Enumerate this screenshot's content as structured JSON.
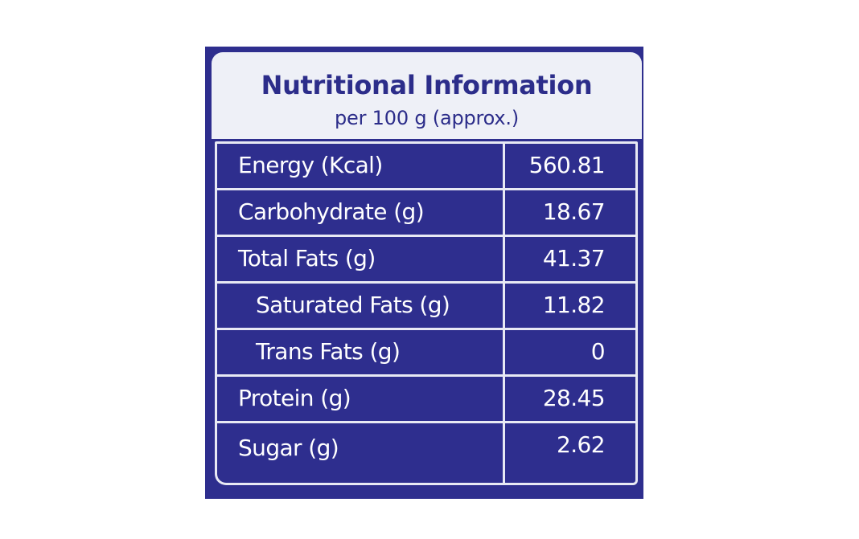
{
  "label": {
    "title": "Nutritional Information",
    "subtitle": "per 100 g (approx.)",
    "rows": [
      {
        "name": "Energy (Kcal)",
        "value": "560.81"
      },
      {
        "name": "Carbohydrate (g)",
        "value": "18.67"
      },
      {
        "name": "Total Fats (g)",
        "value": "41.37"
      },
      {
        "name": "Saturated Fats (g)",
        "value": "11.82"
      },
      {
        "name": "Trans Fats (g)",
        "value": "0"
      },
      {
        "name": "Protein (g)",
        "value": "28.45"
      },
      {
        "name": "Sugar (g)",
        "value": "2.62"
      }
    ]
  },
  "colors": {
    "panel": "#2e2e8e",
    "header_background": "#eef0f7",
    "header_text": "#2c2d8a",
    "table_lines": "#e8e9f4",
    "table_text": "#ffffff"
  }
}
